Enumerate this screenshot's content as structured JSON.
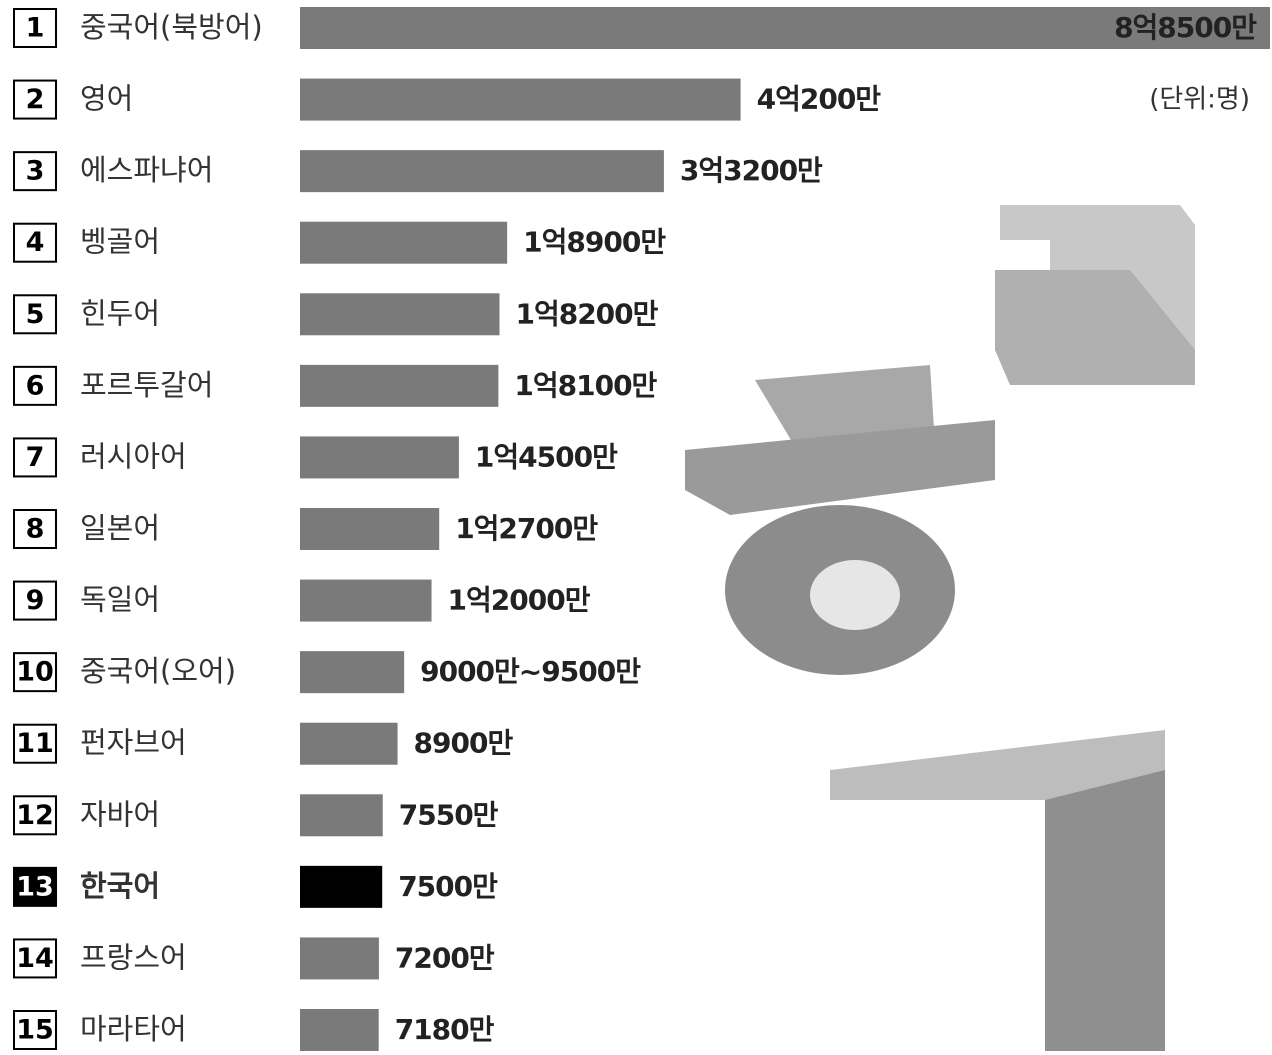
{
  "chart_data": {
    "type": "bar",
    "orientation": "horizontal",
    "unit_note": "(단위:명)",
    "ranks": [
      "1",
      "2",
      "3",
      "4",
      "5",
      "6",
      "7",
      "8",
      "9",
      "10",
      "11",
      "12",
      "13",
      "14",
      "15"
    ],
    "categories": [
      "중국어(북방어)",
      "영어",
      "에스파냐어",
      "벵골어",
      "힌두어",
      "포르투갈어",
      "러시아어",
      "일본어",
      "독일어",
      "중국어(오어)",
      "펀자브어",
      "자바어",
      "한국어",
      "프랑스어",
      "마라타어"
    ],
    "values": [
      885000000,
      402000000,
      332000000,
      189000000,
      182000000,
      181000000,
      145000000,
      127000000,
      120000000,
      95000000,
      89000000,
      75500000,
      75000000,
      72000000,
      71800000
    ],
    "value_labels": [
      "8억8500만",
      "4억200만",
      "3억3200만",
      "1억8900만",
      "1억8200만",
      "1억8100만",
      "1억4500만",
      "1억2700만",
      "1억2000만",
      "9000만~9500만",
      "8900만",
      "7550만",
      "7500만",
      "7200만",
      "7180만"
    ],
    "colors": [
      "#7a7a7a",
      "#7a7a7a",
      "#7a7a7a",
      "#7a7a7a",
      "#7a7a7a",
      "#7a7a7a",
      "#7a7a7a",
      "#7a7a7a",
      "#7a7a7a",
      "#7a7a7a",
      "#7a7a7a",
      "#7a7a7a",
      "#000000",
      "#7a7a7a",
      "#7a7a7a"
    ]
  }
}
